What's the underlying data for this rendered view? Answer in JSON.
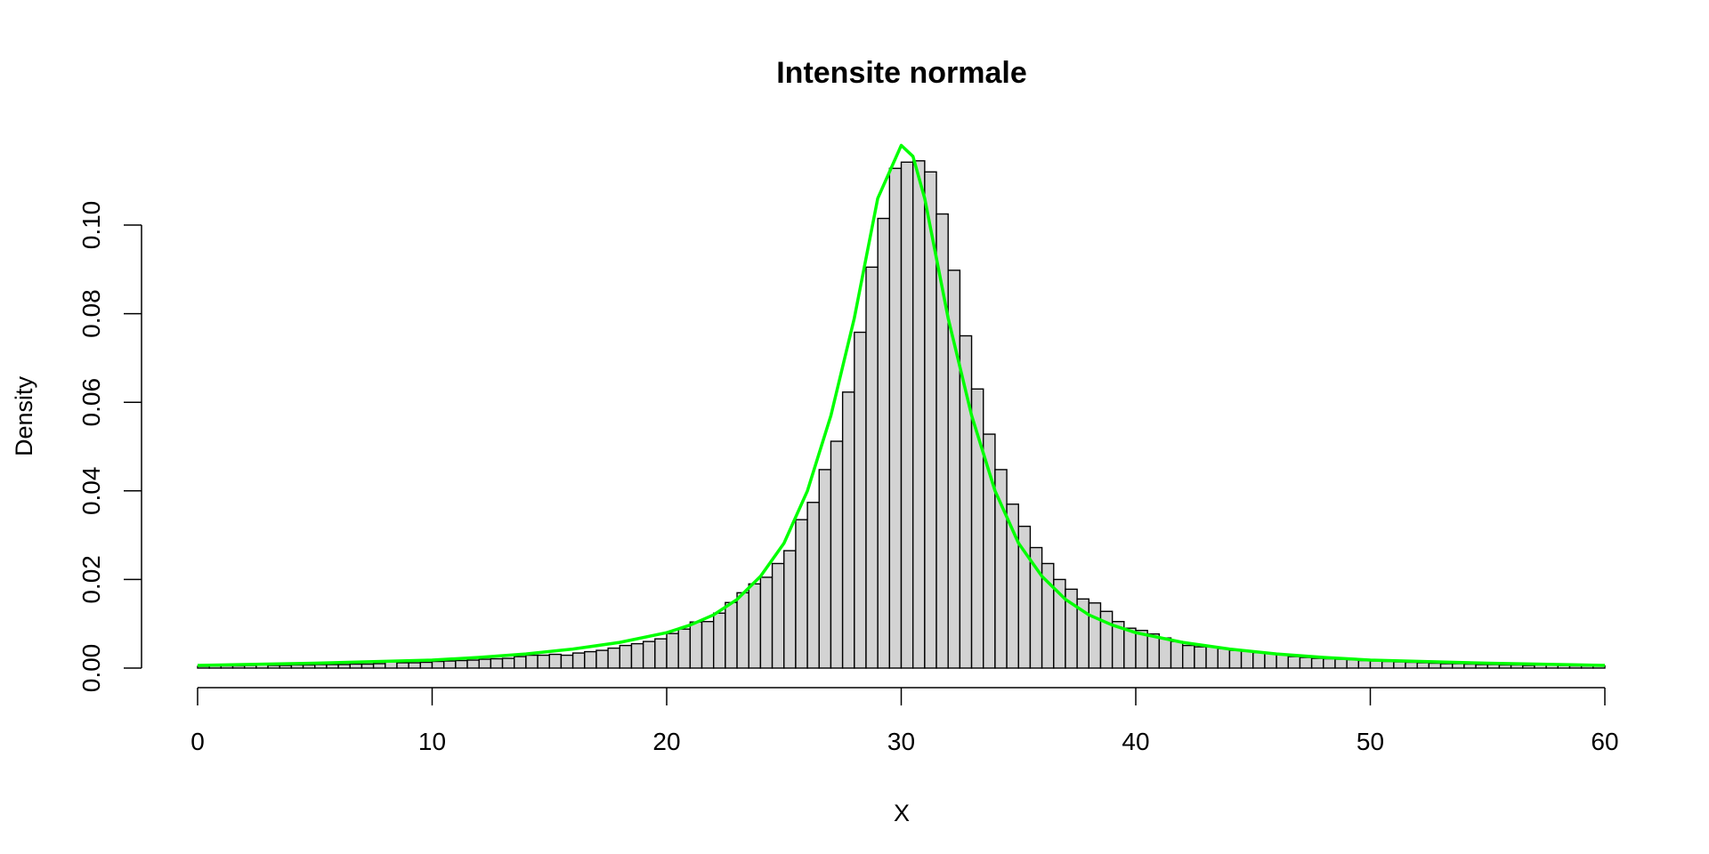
{
  "chart_data": {
    "type": "bar",
    "title": "Intensite normale",
    "xlabel": "X",
    "ylabel": "Density",
    "xlim": [
      0,
      60
    ],
    "ylim": [
      0,
      0.12
    ],
    "x_ticks": [
      "0",
      "10",
      "20",
      "30",
      "40",
      "50",
      "60"
    ],
    "y_ticks": [
      "0.00",
      "0.02",
      "0.04",
      "0.06",
      "0.08",
      "0.10"
    ],
    "bin_width": 0.5,
    "bar_fill": "#d3d3d3",
    "bar_stroke": "#000000",
    "curve_color": "#00ff00",
    "grid": false,
    "legend": "none",
    "histogram_density": [
      0.0004,
      0.0005,
      0.0005,
      0.0005,
      0.0006,
      0.0008,
      0.0006,
      0.0006,
      0.0007,
      0.0007,
      0.0008,
      0.0008,
      0.0008,
      0.0009,
      0.0009,
      0.001,
      0.0014,
      0.0012,
      0.0012,
      0.0013,
      0.0015,
      0.0016,
      0.0017,
      0.0018,
      0.002,
      0.0021,
      0.0022,
      0.0026,
      0.0029,
      0.0029,
      0.0031,
      0.0029,
      0.0034,
      0.0037,
      0.004,
      0.0045,
      0.0051,
      0.0055,
      0.006,
      0.0066,
      0.0078,
      0.0088,
      0.0104,
      0.0105,
      0.0124,
      0.0148,
      0.017,
      0.019,
      0.0205,
      0.0236,
      0.0265,
      0.0335,
      0.0374,
      0.0448,
      0.0512,
      0.0623,
      0.0758,
      0.0905,
      0.1015,
      0.1128,
      0.1142,
      0.1145,
      0.112,
      0.1025,
      0.0898,
      0.075,
      0.063,
      0.0528,
      0.0448,
      0.037,
      0.032,
      0.0272,
      0.0236,
      0.02,
      0.0178,
      0.0156,
      0.0147,
      0.0128,
      0.0105,
      0.009,
      0.0085,
      0.0077,
      0.0068,
      0.006,
      0.0051,
      0.0048,
      0.0048,
      0.0044,
      0.004,
      0.0038,
      0.0035,
      0.0033,
      0.003,
      0.0026,
      0.0024,
      0.0022,
      0.0021,
      0.002,
      0.0019,
      0.0017,
      0.0016,
      0.0015,
      0.0014,
      0.0013,
      0.0012,
      0.0011,
      0.001,
      0.001,
      0.0009,
      0.0008,
      0.0008,
      0.0007,
      0.0007,
      0.0006,
      0.0007,
      0.0009,
      0.0006,
      0.0005,
      0.0005,
      0.0005
    ],
    "curve": {
      "x": [
        0,
        5,
        10,
        12,
        14,
        16,
        18,
        20,
        21,
        22,
        23,
        24,
        25,
        26,
        27,
        28,
        29,
        30,
        30.5,
        31,
        32,
        33,
        34,
        35,
        36,
        37,
        38,
        39,
        40,
        42,
        44,
        46,
        48,
        50,
        55,
        60
      ],
      "y": [
        0.0006,
        0.0011,
        0.0018,
        0.0024,
        0.0032,
        0.0043,
        0.0058,
        0.008,
        0.0097,
        0.012,
        0.0155,
        0.0207,
        0.0282,
        0.04,
        0.057,
        0.079,
        0.106,
        0.118,
        0.1155,
        0.106,
        0.079,
        0.057,
        0.04,
        0.0282,
        0.0207,
        0.0155,
        0.012,
        0.0097,
        0.008,
        0.0058,
        0.0043,
        0.0032,
        0.0024,
        0.0018,
        0.0011,
        0.0006
      ]
    }
  }
}
